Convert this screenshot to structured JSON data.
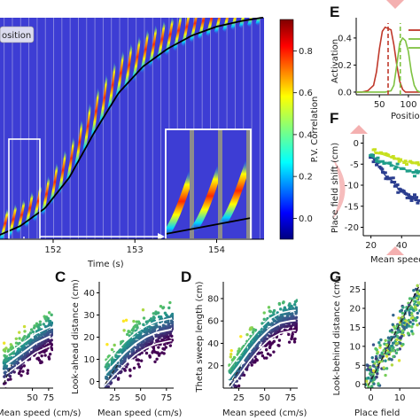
{
  "figure": {
    "panel_letters": [
      "C",
      "D",
      "E",
      "F",
      "G"
    ]
  },
  "chart_data": [
    {
      "id": "heatmap-main",
      "type": "heatmap",
      "title": "",
      "xlabel": "Time (s)",
      "ylabel": "",
      "x_ticks": [
        "152",
        "153",
        "154"
      ],
      "xlim": [
        151.35,
        154.58
      ],
      "legend_text": "osition",
      "colorbar": {
        "label": "P.V. Correlation",
        "ticks": [
          "0.8",
          "0.6",
          "0.4",
          "0.2",
          "0.0"
        ],
        "tick_values": [
          0.8,
          0.6,
          0.4,
          0.2,
          0.0
        ],
        "range": [
          -0.1,
          0.95
        ],
        "colormap": "jet"
      },
      "sweep_count": 32,
      "trajectory": {
        "color": "#000000",
        "x": [
          151.35,
          151.6,
          151.9,
          152.2,
          152.5,
          152.8,
          153.1,
          153.4,
          153.7,
          154.0,
          154.3,
          154.55
        ],
        "y_frac": [
          0.02,
          0.06,
          0.14,
          0.28,
          0.48,
          0.66,
          0.78,
          0.86,
          0.92,
          0.96,
          0.985,
          1.0
        ]
      },
      "inset": {
        "theta_cycles": 3
      },
      "colors": {
        "background": "#3d3dd4",
        "grid": "#c8c8e8"
      }
    },
    {
      "id": "panel-b",
      "type": "scatter",
      "xlabel": "Mean speed (cm/s)",
      "ylabel": "",
      "x_ticks": [
        "50",
        "75"
      ],
      "xlim": [
        0,
        82
      ],
      "ylim": [
        -5,
        40
      ],
      "colormap": "viridis",
      "n_points": 420,
      "trend": {
        "x": [
          10,
          25,
          40,
          55,
          70,
          78
        ],
        "y": [
          5,
          8,
          11,
          14,
          16,
          17
        ]
      },
      "band_offset": 4
    },
    {
      "id": "panel-c",
      "letter": "C",
      "type": "scatter",
      "xlabel": "Mean speed (cm/s)",
      "ylabel": "Look-ahead distance (cm)",
      "x_ticks": [
        "25",
        "50",
        "75"
      ],
      "x_tick_values": [
        25,
        50,
        75
      ],
      "y_ticks": [
        "0",
        "10",
        "20",
        "30",
        "40"
      ],
      "y_tick_values": [
        0,
        10,
        20,
        30,
        40
      ],
      "xlim": [
        10,
        82
      ],
      "ylim": [
        -3,
        45
      ],
      "colormap": "viridis",
      "n_points": 600,
      "trend": {
        "x": [
          15,
          25,
          35,
          45,
          55,
          65,
          75,
          80
        ],
        "y": [
          3,
          8,
          13,
          17,
          20,
          22,
          23,
          23.5
        ]
      },
      "band_offset": 5
    },
    {
      "id": "panel-d",
      "letter": "D",
      "type": "scatter",
      "xlabel": "Mean speed (cm/s)",
      "ylabel": "Theta sweep length (cm)",
      "x_ticks": [
        "25",
        "50",
        "75"
      ],
      "x_tick_values": [
        25,
        50,
        75
      ],
      "y_ticks": [
        "20",
        "40",
        "60",
        "80"
      ],
      "y_tick_values": [
        20,
        40,
        60,
        80
      ],
      "xlim": [
        10,
        82
      ],
      "ylim": [
        0,
        95
      ],
      "colormap": "viridis",
      "n_points": 600,
      "trend": {
        "x": [
          15,
          25,
          35,
          45,
          55,
          65,
          75,
          80
        ],
        "y": [
          8,
          20,
          33,
          44,
          53,
          58,
          60,
          60.5
        ]
      },
      "band_offset": 9
    },
    {
      "id": "panel-e",
      "letter": "E",
      "type": "line",
      "xlabel": "Position",
      "ylabel": "Activation",
      "x_ticks": [
        "50",
        "100"
      ],
      "x_tick_values": [
        50,
        100
      ],
      "y_ticks": [
        "0.0",
        "0.2",
        "0.4"
      ],
      "y_tick_values": [
        0.0,
        0.2,
        0.4
      ],
      "xlim": [
        10,
        120
      ],
      "ylim": [
        -0.02,
        0.55
      ],
      "series": [
        {
          "color": "#c0392b",
          "x": [
            10,
            20,
            30,
            40,
            45,
            50,
            55,
            60,
            65,
            70,
            75,
            80,
            85,
            90,
            95,
            100,
            110,
            120
          ],
          "y": [
            0,
            0,
            0.01,
            0.05,
            0.15,
            0.32,
            0.45,
            0.48,
            0.47,
            0.46,
            0.35,
            0.2,
            0.08,
            0.02,
            0,
            0,
            0,
            0
          ]
        },
        {
          "color": "#7fc242",
          "x": [
            10,
            40,
            60,
            70,
            75,
            80,
            85,
            90,
            95,
            100,
            105,
            110,
            115,
            120
          ],
          "y": [
            0,
            0,
            0,
            0.01,
            0.05,
            0.2,
            0.36,
            0.4,
            0.38,
            0.3,
            0.15,
            0.05,
            0.01,
            0
          ]
        }
      ],
      "vlines": [
        {
          "x": 65,
          "color": "#c0392b"
        },
        {
          "x": 86,
          "color": "#7fc242"
        }
      ],
      "legend_colors": [
        "#c0392b",
        "#7fc242",
        "#7fc242"
      ]
    },
    {
      "id": "panel-f",
      "letter": "F",
      "type": "scatter",
      "xlabel": "Mean speed",
      "ylabel": "Place field shift (cm)",
      "x_ticks": [
        "20",
        "40"
      ],
      "x_tick_values": [
        20,
        40
      ],
      "y_ticks": [
        "0",
        "-5",
        "-10",
        "-15",
        "-20"
      ],
      "y_tick_values": [
        0,
        -5,
        -10,
        -15,
        -20
      ],
      "xlim": [
        15,
        52
      ],
      "ylim": [
        -22,
        2
      ],
      "series": [
        {
          "color": "#2a3d8f",
          "x": [
            20,
            22,
            24,
            26,
            28,
            30,
            32,
            34,
            36,
            38,
            40,
            42,
            44,
            46,
            48,
            50
          ],
          "y": [
            -3,
            -4,
            -5,
            -6,
            -7,
            -8,
            -8.5,
            -9,
            -10,
            -11,
            -11.5,
            -12,
            -12.5,
            -13,
            -13,
            -13.5
          ]
        },
        {
          "color": "#1f9e89",
          "x": [
            20,
            24,
            28,
            32,
            36,
            40,
            44,
            48,
            50
          ],
          "y": [
            -3,
            -4,
            -4.5,
            -5,
            -5.5,
            -6,
            -6.5,
            -7,
            -7
          ]
        },
        {
          "color": "#c7e020",
          "x": [
            22,
            26,
            30,
            34,
            38,
            42,
            46,
            50
          ],
          "y": [
            -2,
            -2.5,
            -3,
            -3.5,
            -4,
            -4.5,
            -4.5,
            -5
          ]
        }
      ],
      "decoration_color": "#f4b0b0"
    },
    {
      "id": "panel-g",
      "letter": "G",
      "type": "scatter",
      "xlabel": "Place field",
      "ylabel": "Look-behind distance (cm)",
      "x_ticks": [
        "0",
        "10"
      ],
      "x_tick_values": [
        0,
        10
      ],
      "y_ticks": [
        "0",
        "5",
        "10",
        "15",
        "20",
        "25"
      ],
      "y_tick_values": [
        0,
        5,
        10,
        15,
        20,
        25
      ],
      "xlim": [
        -2,
        17
      ],
      "ylim": [
        -1,
        27
      ],
      "colormap": "viridis",
      "n_points": 300,
      "identity_line": true
    }
  ]
}
